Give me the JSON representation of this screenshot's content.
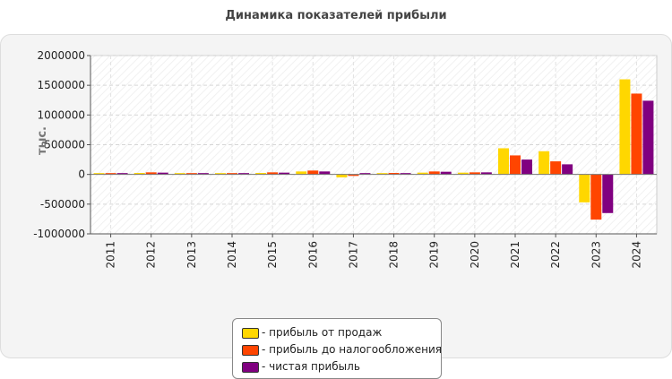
{
  "chart_data": {
    "type": "bar",
    "title": "Динамика показателей прибыли",
    "ylabel": "тыс.",
    "xlabel": "",
    "ylim": [
      -1000000,
      2000000
    ],
    "yticks": [
      2000000,
      1500000,
      1000000,
      500000,
      0,
      -500000,
      -1000000
    ],
    "grid": true,
    "legend_position": "bottom",
    "categories": [
      "2011",
      "2012",
      "2013",
      "2014",
      "2015",
      "2016",
      "2017",
      "2018",
      "2019",
      "2020",
      "2021",
      "2022",
      "2023",
      "2024"
    ],
    "series": [
      {
        "name": "- прибыль от продаж",
        "color": "#ffd700",
        "values": [
          20000,
          25000,
          20000,
          15000,
          25000,
          50000,
          -50000,
          20000,
          30000,
          30000,
          440000,
          390000,
          -470000,
          1600000
        ]
      },
      {
        "name": "- прибыль до налогообложения",
        "color": "#ff4500",
        "values": [
          20000,
          35000,
          20000,
          20000,
          35000,
          65000,
          -25000,
          25000,
          50000,
          35000,
          320000,
          220000,
          -760000,
          1360000
        ]
      },
      {
        "name": "- чистая прибыль",
        "color": "#800080",
        "values": [
          15000,
          30000,
          20000,
          15000,
          30000,
          50000,
          -10000,
          20000,
          45000,
          35000,
          250000,
          170000,
          -650000,
          1240000
        ]
      }
    ]
  }
}
